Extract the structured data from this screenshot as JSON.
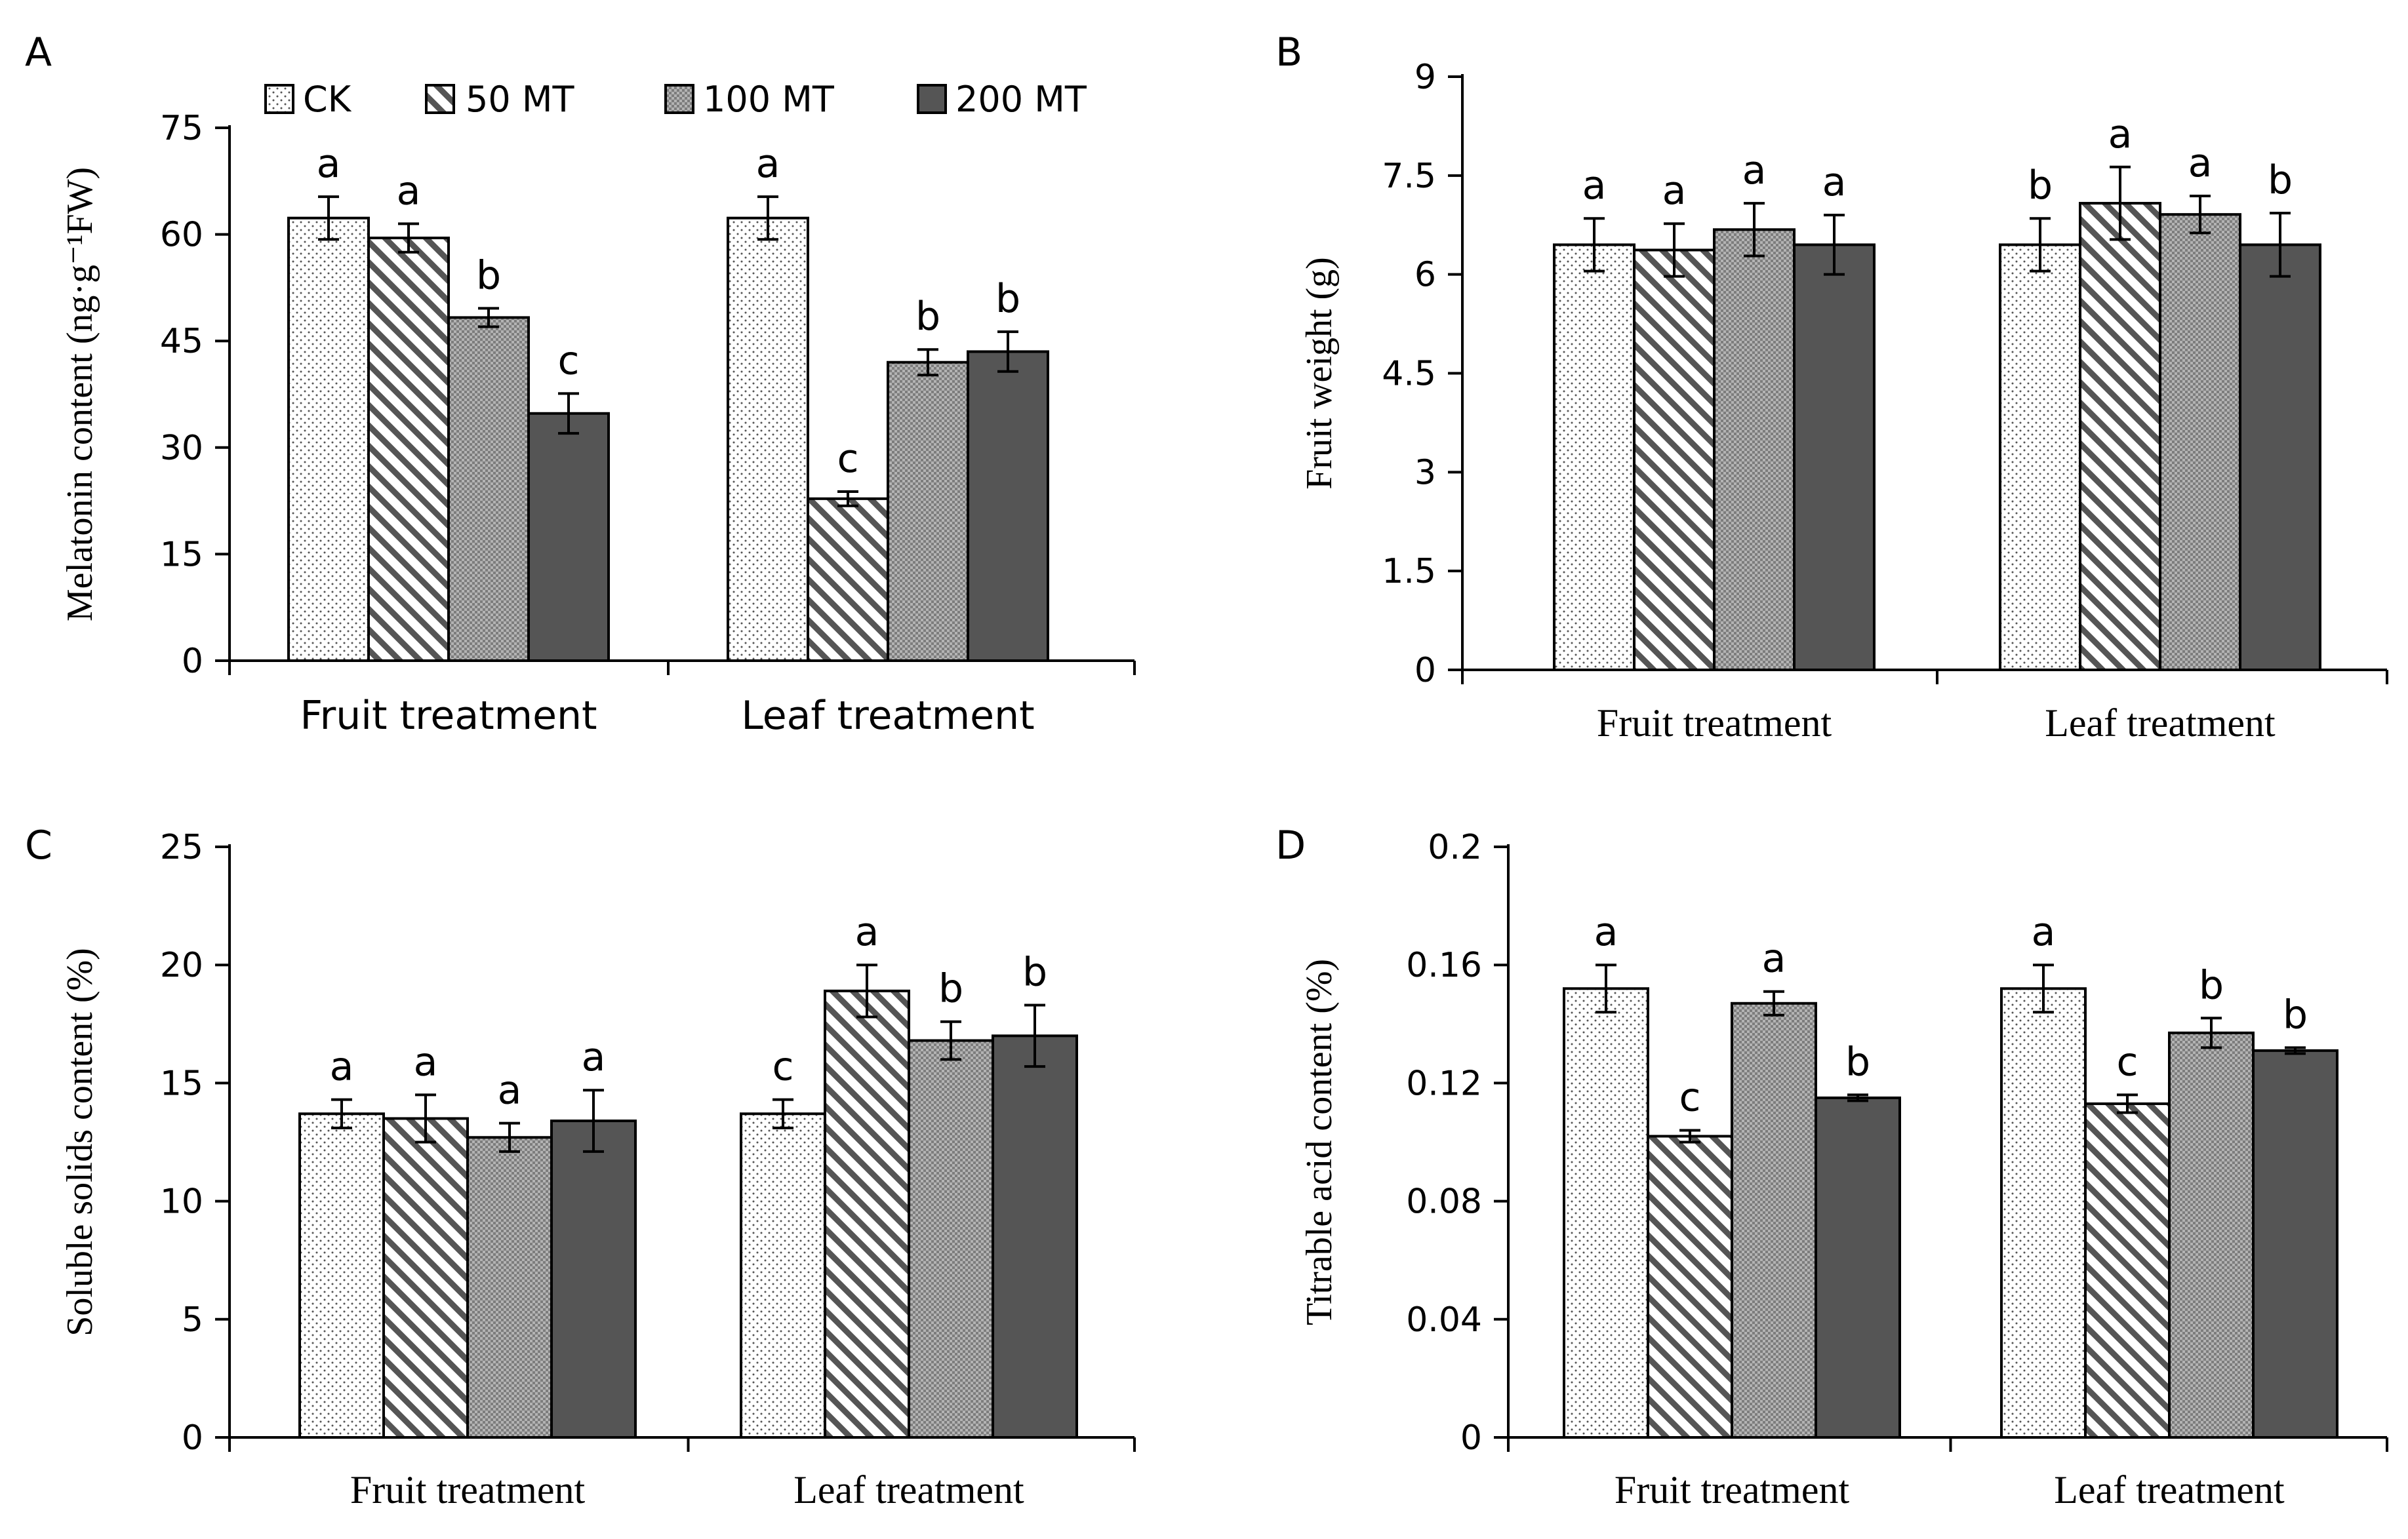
{
  "legend": [
    {
      "label": "CK",
      "pattern": "dots"
    },
    {
      "label": "50 MT",
      "pattern": "hatch"
    },
    {
      "label": "100 MT",
      "pattern": "crosshatch"
    },
    {
      "label": "200 MT",
      "pattern": "solid"
    }
  ],
  "colors": {
    "solid_fill": "#555555",
    "crosshatch_fill": "#9a9a9a",
    "dot_fill": "#ffffff",
    "axis": "#000000"
  },
  "chart_data": [
    {
      "panel": "A",
      "type": "bar",
      "ylabel": "Melatonin content (ng·g⁻¹FW)",
      "ylim": [
        0,
        75
      ],
      "yticks": [
        "0",
        "15",
        "30",
        "45",
        "60",
        "75"
      ],
      "categories": [
        "Fruit treatment",
        "Leaf treatment"
      ],
      "series": [
        {
          "name": "CK",
          "values": [
            62.3,
            62.3
          ],
          "errors": [
            3.0,
            3.0
          ],
          "letters": [
            "a",
            "a"
          ]
        },
        {
          "name": "50 MT",
          "values": [
            59.5,
            22.8
          ],
          "errors": [
            2.0,
            1.0
          ],
          "letters": [
            "a",
            "c"
          ]
        },
        {
          "name": "100 MT",
          "values": [
            48.3,
            42.0
          ],
          "errors": [
            1.3,
            1.8
          ],
          "letters": [
            "b",
            "b"
          ]
        },
        {
          "name": "200 MT",
          "values": [
            34.8,
            43.5
          ],
          "errors": [
            2.8,
            2.8
          ],
          "letters": [
            "c",
            "b"
          ]
        }
      ]
    },
    {
      "panel": "B",
      "type": "bar",
      "ylabel": "Fruit weight (g)",
      "ylim": [
        0,
        9
      ],
      "yticks": [
        "0",
        "1.5",
        "3",
        "4.5",
        "6",
        "7.5",
        "9"
      ],
      "categories": [
        "Fruit treatment",
        "Leaf treatment"
      ],
      "series": [
        {
          "name": "CK",
          "values": [
            6.45,
            6.45
          ],
          "errors": [
            0.4,
            0.4
          ],
          "letters": [
            "a",
            "b"
          ]
        },
        {
          "name": "50 MT",
          "values": [
            6.37,
            7.08
          ],
          "errors": [
            0.4,
            0.55
          ],
          "letters": [
            "a",
            "a"
          ]
        },
        {
          "name": "100 MT",
          "values": [
            6.68,
            6.91
          ],
          "errors": [
            0.4,
            0.28
          ],
          "letters": [
            "a",
            "a"
          ]
        },
        {
          "name": "200 MT",
          "values": [
            6.45,
            6.45
          ],
          "errors": [
            0.45,
            0.48
          ],
          "letters": [
            "a",
            "b"
          ]
        }
      ]
    },
    {
      "panel": "C",
      "type": "bar",
      "ylabel": "Soluble solids content  (%)",
      "ylim": [
        0,
        25
      ],
      "yticks": [
        "0",
        "5",
        "10",
        "15",
        "20",
        "25"
      ],
      "categories": [
        "Fruit treatment",
        "Leaf treatment"
      ],
      "series": [
        {
          "name": "CK",
          "values": [
            13.7,
            13.7
          ],
          "errors": [
            0.6,
            0.6
          ],
          "letters": [
            "a",
            "c"
          ]
        },
        {
          "name": "50 MT",
          "values": [
            13.5,
            18.9
          ],
          "errors": [
            1.0,
            1.1
          ],
          "letters": [
            "a",
            "a"
          ]
        },
        {
          "name": "100 MT",
          "values": [
            12.7,
            16.8
          ],
          "errors": [
            0.6,
            0.8
          ],
          "letters": [
            "a",
            "b"
          ]
        },
        {
          "name": "200 MT",
          "values": [
            13.4,
            17.0
          ],
          "errors": [
            1.3,
            1.3
          ],
          "letters": [
            "a",
            "b"
          ]
        }
      ]
    },
    {
      "panel": "D",
      "type": "bar",
      "ylabel": "Titrable acid content  (%)",
      "ylim": [
        0,
        0.2
      ],
      "yticks": [
        "0",
        "0.04",
        "0.08",
        "0.12",
        "0.16",
        "0.2"
      ],
      "categories": [
        "Fruit treatment",
        "Leaf treatment"
      ],
      "series": [
        {
          "name": "CK",
          "values": [
            0.152,
            0.152
          ],
          "errors": [
            0.008,
            0.008
          ],
          "letters": [
            "a",
            "a"
          ]
        },
        {
          "name": "50 MT",
          "values": [
            0.102,
            0.113
          ],
          "errors": [
            0.002,
            0.003
          ],
          "letters": [
            "c",
            "c"
          ]
        },
        {
          "name": "100 MT",
          "values": [
            0.147,
            0.137
          ],
          "errors": [
            0.004,
            0.005
          ],
          "letters": [
            "a",
            "b"
          ]
        },
        {
          "name": "200 MT",
          "values": [
            0.115,
            0.131
          ],
          "errors": [
            0.001,
            0.001
          ],
          "letters": [
            "b",
            "b"
          ]
        }
      ]
    }
  ]
}
